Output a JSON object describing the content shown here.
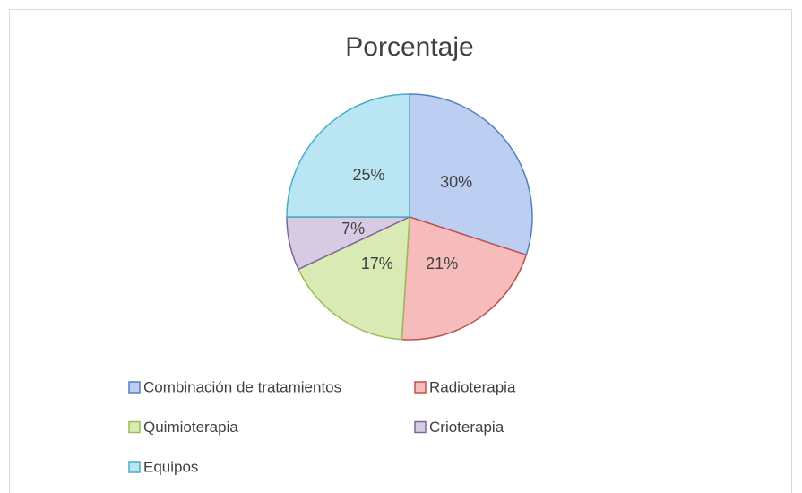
{
  "chart_data": {
    "type": "pie",
    "title": "Porcentaje",
    "categories": [
      "Combinación de tratamientos",
      "Radioterapia",
      "Quimioterapia",
      "Crioterapia",
      "Equipos"
    ],
    "values": [
      30,
      21,
      17,
      7,
      25
    ],
    "value_labels": [
      "30%",
      "21%",
      "17%",
      "7%",
      "25%"
    ],
    "colors": [
      "#bccff2",
      "#f6bcbb",
      "#d9eab4",
      "#d6cbe3",
      "#bae6f3"
    ],
    "edge_colors": [
      "#4f81bd",
      "#c0504d",
      "#9bbb59",
      "#8064a2",
      "#4bacc6"
    ]
  }
}
